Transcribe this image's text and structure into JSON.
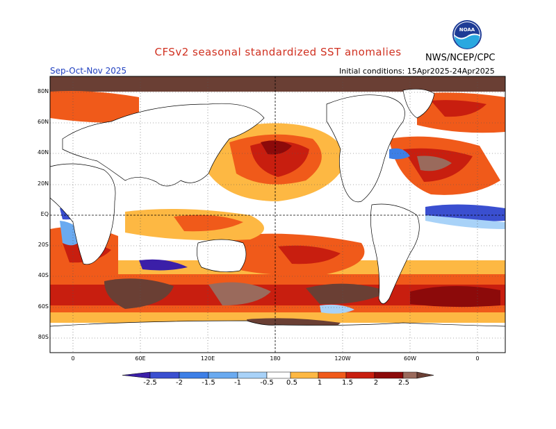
{
  "header": {
    "title": "CFSv2 seasonal standardized SST anomalies",
    "agency": "NWS/NCEP/CPC",
    "season": "Sep-Oct-Nov 2025",
    "initial_conditions": "Initial conditions: 15Apr2025-24Apr2025",
    "logo_text": "NOAA"
  },
  "axes": {
    "lat_labels": [
      "80N",
      "60N",
      "40N",
      "20N",
      "EQ",
      "20S",
      "40S",
      "60S",
      "80S"
    ],
    "lon_labels": [
      "0",
      "60E",
      "120E",
      "180",
      "120W",
      "60W",
      "0"
    ]
  },
  "colorbar": {
    "labels": [
      "-2.5",
      "-2",
      "-1.5",
      "-1",
      "-0.5",
      "0.5",
      "1",
      "1.5",
      "2",
      "2.5"
    ],
    "colors": [
      "#3b1fa8",
      "#3a4fd0",
      "#3d7fe6",
      "#6aaaf0",
      "#a8d2f8",
      "#ffffff",
      "#fdb843",
      "#f05a1a",
      "#c81e0f",
      "#8c0a0a",
      "#9a6a5c",
      "#6a3f34"
    ]
  },
  "colors": {
    "land": "#ffffff",
    "grid": "#555555",
    "coast": "#000000"
  }
}
